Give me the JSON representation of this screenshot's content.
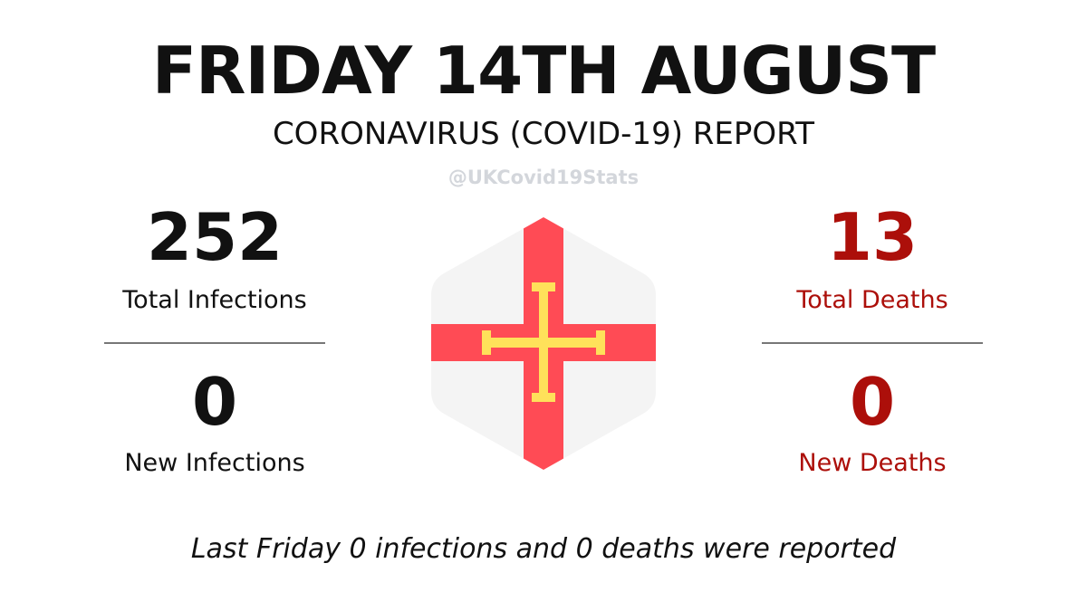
{
  "header": {
    "title": "FRIDAY 14TH AUGUST",
    "subtitle": "CORONAVIRUS (COVID-19) REPORT",
    "handle": "@UKCovid19Stats"
  },
  "infections": {
    "total_value": "252",
    "total_label": "Total Infections",
    "new_value": "0",
    "new_label": "New Infections"
  },
  "deaths": {
    "total_value": "13",
    "total_label": "Total Deaths",
    "new_value": "0",
    "new_label": "New Deaths"
  },
  "flag": {
    "icon": "guernsey-flag-icon",
    "background_color": "#f4f4f4",
    "cross_color": "#ff4b55",
    "inner_cross_color": "#ffe15a"
  },
  "footer": {
    "text": "Last Friday 0 infections and 0 deaths were reported"
  },
  "colors": {
    "text": "#111111",
    "deaths": "#ac0f0a",
    "handle": "#d3d6db",
    "divider": "#777777"
  }
}
